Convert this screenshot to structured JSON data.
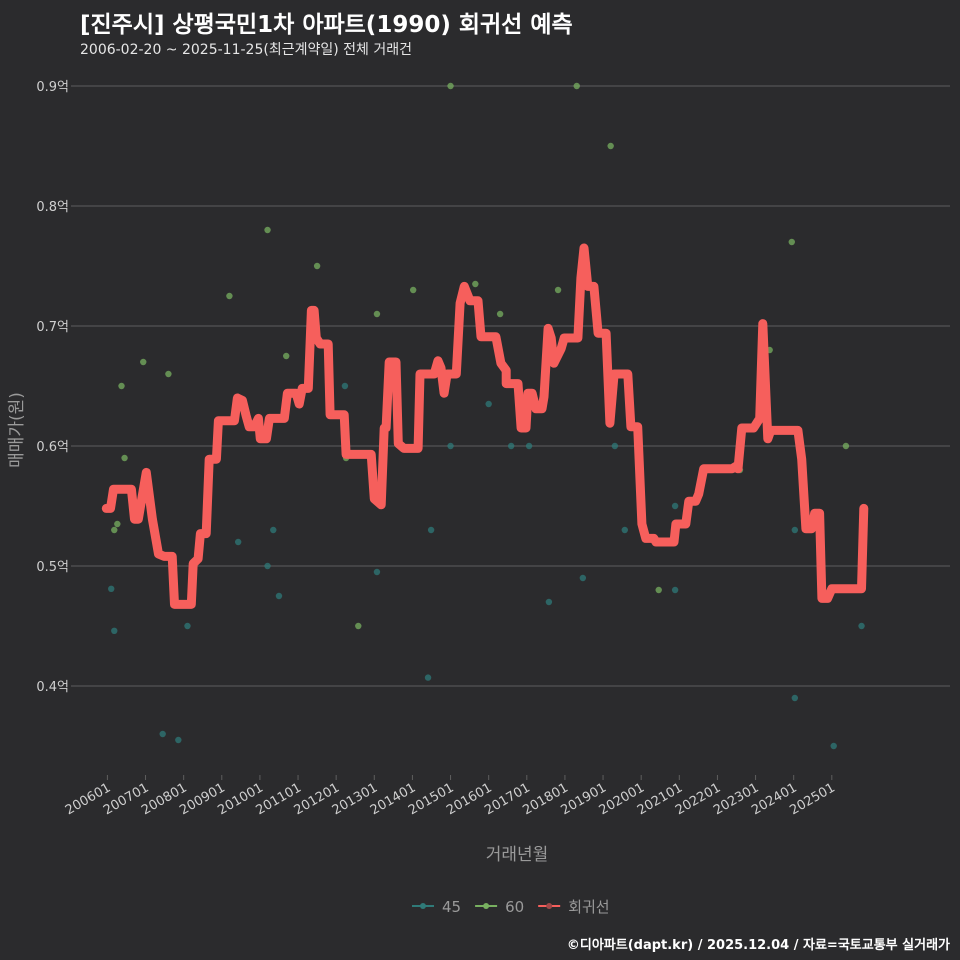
{
  "header": {
    "title": "[진주시] 상평국민1차 아파트(1990) 회귀선 예측",
    "subtitle": "2006-02-20 ~ 2025-11-25(최근계약일) 전체 거래건"
  },
  "footer": "©디아파트(dapt.kr) / 2025.12.04 / 자료=국토교통부 실거래가",
  "colors": {
    "background": "#2b2b2d",
    "grid": "#5e5e5e",
    "s45": "#2f7a78",
    "s60": "#78b060",
    "line": "#f65f5c"
  },
  "chart_data": {
    "type": "scatter+line",
    "xlabel": "거래년월",
    "ylabel": "매매가(원)",
    "ylim": [
      0.33,
      0.93
    ],
    "xlim": [
      2005.15,
      2028.1
    ],
    "yticks": [
      {
        "v": 0.4,
        "label": "0.4억"
      },
      {
        "v": 0.5,
        "label": "0.5억"
      },
      {
        "v": 0.6,
        "label": "0.6억"
      },
      {
        "v": 0.7,
        "label": "0.7억"
      },
      {
        "v": 0.8,
        "label": "0.8억"
      },
      {
        "v": 0.9,
        "label": "0.9억"
      }
    ],
    "xticks": [
      "200601",
      "200701",
      "200801",
      "200901",
      "201001",
      "201101",
      "201201",
      "201301",
      "201401",
      "201501",
      "201601",
      "201701",
      "201801",
      "201901",
      "202001",
      "202101",
      "202201",
      "202301",
      "202401",
      "202501"
    ],
    "legend": {
      "position": "bottom",
      "items": [
        {
          "key": "s45",
          "label": "45"
        },
        {
          "key": "s60",
          "label": "60"
        },
        {
          "key": "line",
          "label": "회귀선"
        }
      ]
    },
    "series": [
      {
        "name": "45",
        "key": "s45",
        "points": [
          [
            2006.1,
            0.481
          ],
          [
            2006.18,
            0.446
          ],
          [
            2007.45,
            0.36
          ],
          [
            2007.86,
            0.355
          ],
          [
            2008.1,
            0.45
          ],
          [
            2009.43,
            0.52
          ],
          [
            2010.2,
            0.5
          ],
          [
            2010.35,
            0.53
          ],
          [
            2010.5,
            0.475
          ],
          [
            2012.23,
            0.65
          ],
          [
            2013.07,
            0.495
          ],
          [
            2014.41,
            0.407
          ],
          [
            2014.49,
            0.53
          ],
          [
            2015.0,
            0.6
          ],
          [
            2016.0,
            0.635
          ],
          [
            2016.59,
            0.6
          ],
          [
            2017.06,
            0.6
          ],
          [
            2017.58,
            0.47
          ],
          [
            2018.47,
            0.49
          ],
          [
            2019.31,
            0.6
          ],
          [
            2019.57,
            0.53
          ],
          [
            2020.89,
            0.55
          ],
          [
            2020.89,
            0.48
          ],
          [
            2024.03,
            0.53
          ],
          [
            2024.03,
            0.39
          ],
          [
            2025.05,
            0.35
          ],
          [
            2025.78,
            0.45
          ]
        ]
      },
      {
        "name": "60",
        "key": "s60",
        "points": [
          [
            2006.18,
            0.53
          ],
          [
            2006.26,
            0.535
          ],
          [
            2006.37,
            0.65
          ],
          [
            2006.45,
            0.59
          ],
          [
            2006.94,
            0.67
          ],
          [
            2007.6,
            0.66
          ],
          [
            2009.2,
            0.725
          ],
          [
            2010.2,
            0.78
          ],
          [
            2010.69,
            0.675
          ],
          [
            2011.5,
            0.75
          ],
          [
            2012.26,
            0.59
          ],
          [
            2012.58,
            0.45
          ],
          [
            2013.07,
            0.71
          ],
          [
            2014.02,
            0.73
          ],
          [
            2015.0,
            0.9
          ],
          [
            2015.65,
            0.735
          ],
          [
            2016.3,
            0.71
          ],
          [
            2017.82,
            0.73
          ],
          [
            2018.31,
            0.9
          ],
          [
            2019.2,
            0.85
          ],
          [
            2020.46,
            0.48
          ],
          [
            2022.59,
            0.58
          ],
          [
            2023.37,
            0.68
          ],
          [
            2023.95,
            0.77
          ],
          [
            2025.37,
            0.6
          ]
        ]
      },
      {
        "name": "회귀선",
        "key": "line",
        "points": [
          [
            2005.97,
            0.548
          ],
          [
            2006.08,
            0.548
          ],
          [
            2006.16,
            0.564
          ],
          [
            2006.63,
            0.564
          ],
          [
            2006.71,
            0.539
          ],
          [
            2006.81,
            0.539
          ],
          [
            2007.02,
            0.578
          ],
          [
            2007.18,
            0.539
          ],
          [
            2007.34,
            0.51
          ],
          [
            2007.49,
            0.508
          ],
          [
            2007.7,
            0.508
          ],
          [
            2007.76,
            0.468
          ],
          [
            2008.2,
            0.468
          ],
          [
            2008.25,
            0.502
          ],
          [
            2008.38,
            0.506
          ],
          [
            2008.44,
            0.527
          ],
          [
            2008.59,
            0.527
          ],
          [
            2008.67,
            0.589
          ],
          [
            2008.86,
            0.589
          ],
          [
            2008.91,
            0.621
          ],
          [
            2009.33,
            0.621
          ],
          [
            2009.41,
            0.64
          ],
          [
            2009.54,
            0.638
          ],
          [
            2009.64,
            0.625
          ],
          [
            2009.72,
            0.616
          ],
          [
            2009.85,
            0.616
          ],
          [
            2009.96,
            0.623
          ],
          [
            2010.01,
            0.606
          ],
          [
            2010.17,
            0.606
          ],
          [
            2010.25,
            0.623
          ],
          [
            2010.64,
            0.623
          ],
          [
            2010.72,
            0.644
          ],
          [
            2010.95,
            0.644
          ],
          [
            2011.03,
            0.635
          ],
          [
            2011.11,
            0.648
          ],
          [
            2011.27,
            0.648
          ],
          [
            2011.35,
            0.713
          ],
          [
            2011.42,
            0.713
          ],
          [
            2011.48,
            0.69
          ],
          [
            2011.58,
            0.685
          ],
          [
            2011.79,
            0.685
          ],
          [
            2011.84,
            0.626
          ],
          [
            2012.21,
            0.626
          ],
          [
            2012.26,
            0.593
          ],
          [
            2012.92,
            0.593
          ],
          [
            2013.0,
            0.556
          ],
          [
            2013.18,
            0.551
          ],
          [
            2013.26,
            0.615
          ],
          [
            2013.31,
            0.615
          ],
          [
            2013.39,
            0.67
          ],
          [
            2013.57,
            0.67
          ],
          [
            2013.63,
            0.602
          ],
          [
            2013.78,
            0.598
          ],
          [
            2014.15,
            0.598
          ],
          [
            2014.2,
            0.66
          ],
          [
            2014.57,
            0.66
          ],
          [
            2014.67,
            0.671
          ],
          [
            2014.75,
            0.665
          ],
          [
            2014.83,
            0.644
          ],
          [
            2014.91,
            0.66
          ],
          [
            2015.15,
            0.66
          ],
          [
            2015.25,
            0.719
          ],
          [
            2015.36,
            0.733
          ],
          [
            2015.51,
            0.721
          ],
          [
            2015.72,
            0.721
          ],
          [
            2015.8,
            0.691
          ],
          [
            2016.19,
            0.691
          ],
          [
            2016.32,
            0.669
          ],
          [
            2016.46,
            0.663
          ],
          [
            2016.46,
            0.652
          ],
          [
            2016.77,
            0.652
          ],
          [
            2016.85,
            0.615
          ],
          [
            2016.98,
            0.615
          ],
          [
            2017.03,
            0.644
          ],
          [
            2017.14,
            0.644
          ],
          [
            2017.24,
            0.631
          ],
          [
            2017.4,
            0.631
          ],
          [
            2017.45,
            0.641
          ],
          [
            2017.56,
            0.698
          ],
          [
            2017.64,
            0.69
          ],
          [
            2017.71,
            0.669
          ],
          [
            2017.9,
            0.681
          ],
          [
            2017.98,
            0.69
          ],
          [
            2018.34,
            0.69
          ],
          [
            2018.42,
            0.74
          ],
          [
            2018.5,
            0.765
          ],
          [
            2018.6,
            0.733
          ],
          [
            2018.76,
            0.733
          ],
          [
            2018.87,
            0.694
          ],
          [
            2019.08,
            0.694
          ],
          [
            2019.18,
            0.619
          ],
          [
            2019.29,
            0.66
          ],
          [
            2019.65,
            0.66
          ],
          [
            2019.73,
            0.616
          ],
          [
            2019.91,
            0.616
          ],
          [
            2020.02,
            0.535
          ],
          [
            2020.12,
            0.523
          ],
          [
            2020.33,
            0.523
          ],
          [
            2020.39,
            0.52
          ],
          [
            2020.86,
            0.52
          ],
          [
            2020.91,
            0.535
          ],
          [
            2021.17,
            0.535
          ],
          [
            2021.25,
            0.554
          ],
          [
            2021.43,
            0.554
          ],
          [
            2021.51,
            0.56
          ],
          [
            2021.64,
            0.581
          ],
          [
            2022.38,
            0.581
          ],
          [
            2022.48,
            0.583
          ],
          [
            2022.54,
            0.581
          ],
          [
            2022.64,
            0.615
          ],
          [
            2022.95,
            0.615
          ],
          [
            2023.11,
            0.623
          ],
          [
            2023.19,
            0.702
          ],
          [
            2023.32,
            0.606
          ],
          [
            2023.4,
            0.613
          ],
          [
            2024.11,
            0.613
          ],
          [
            2024.21,
            0.589
          ],
          [
            2024.32,
            0.531
          ],
          [
            2024.47,
            0.531
          ],
          [
            2024.55,
            0.544
          ],
          [
            2024.68,
            0.544
          ],
          [
            2024.74,
            0.473
          ],
          [
            2024.89,
            0.473
          ],
          [
            2025.0,
            0.481
          ],
          [
            2025.78,
            0.481
          ],
          [
            2025.84,
            0.548
          ]
        ]
      }
    ]
  }
}
